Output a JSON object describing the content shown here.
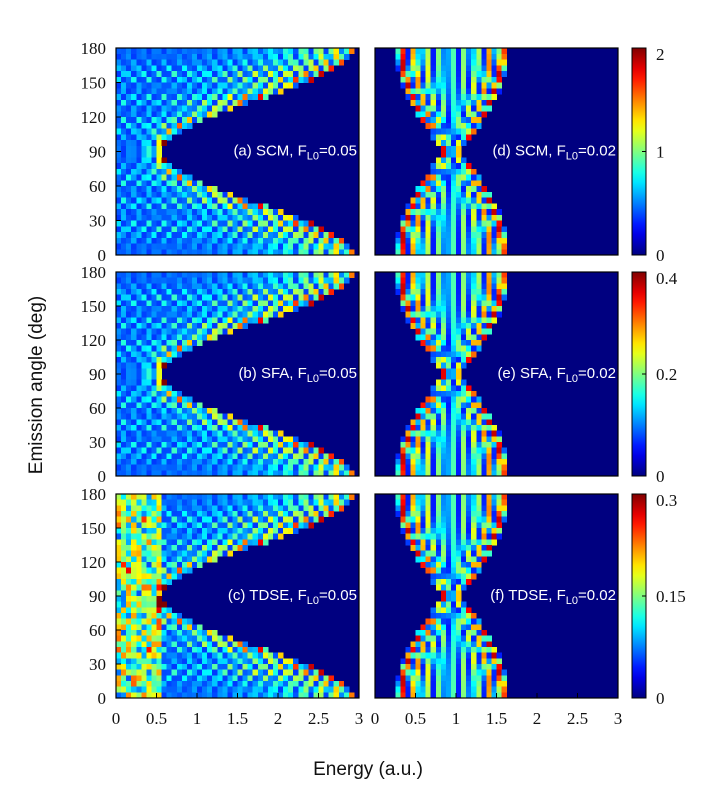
{
  "figure": {
    "ylabel": "Emission angle (deg)",
    "xlabel": "Energy (a.u.)"
  },
  "chart_data": [
    {
      "type": "heatmap",
      "panel": "a",
      "label": {
        "prefix": "(a) SCM, F",
        "sub": "L0",
        "suffix": "=0.05"
      },
      "x_ticks": [
        "0",
        "0.5",
        "1",
        "1.5",
        "2",
        "2.5",
        "3"
      ],
      "xlim": [
        0,
        3
      ],
      "y_ticks": [
        "0",
        "30",
        "60",
        "90",
        "120",
        "150",
        "180"
      ],
      "ylim": [
        0,
        180
      ],
      "colorbar_ticks": [
        "0",
        "1",
        "2"
      ],
      "zlim": [
        0,
        2
      ],
      "colormap": "jet",
      "field_F_L0": 0.05,
      "method": "SCM"
    },
    {
      "type": "heatmap",
      "panel": "d",
      "label": {
        "prefix": "(d) SCM, F",
        "sub": "L0",
        "suffix": "=0.02"
      },
      "x_ticks": [
        "0",
        "0.5",
        "1",
        "1.5",
        "2",
        "2.5",
        "3"
      ],
      "xlim": [
        0,
        3
      ],
      "y_ticks": [
        "0",
        "30",
        "60",
        "90",
        "120",
        "150",
        "180"
      ],
      "ylim": [
        0,
        180
      ],
      "colorbar_ticks": [
        "0",
        "1",
        "2"
      ],
      "zlim": [
        0,
        2
      ],
      "colormap": "jet",
      "field_F_L0": 0.02,
      "method": "SCM"
    },
    {
      "type": "heatmap",
      "panel": "b",
      "label": {
        "prefix": "(b) SFA, F",
        "sub": "L0",
        "suffix": "=0.05"
      },
      "x_ticks": [
        "0",
        "0.5",
        "1",
        "1.5",
        "2",
        "2.5",
        "3"
      ],
      "xlim": [
        0,
        3
      ],
      "y_ticks": [
        "0",
        "30",
        "60",
        "90",
        "120",
        "150",
        "180"
      ],
      "ylim": [
        0,
        180
      ],
      "colorbar_ticks": [
        "0",
        "0.2",
        "0.4"
      ],
      "zlim": [
        0,
        0.4
      ],
      "colormap": "jet",
      "field_F_L0": 0.05,
      "method": "SFA"
    },
    {
      "type": "heatmap",
      "panel": "e",
      "label": {
        "prefix": "(e) SFA, F",
        "sub": "L0",
        "suffix": "=0.02"
      },
      "x_ticks": [
        "0",
        "0.5",
        "1",
        "1.5",
        "2",
        "2.5",
        "3"
      ],
      "xlim": [
        0,
        3
      ],
      "y_ticks": [
        "0",
        "30",
        "60",
        "90",
        "120",
        "150",
        "180"
      ],
      "ylim": [
        0,
        180
      ],
      "colorbar_ticks": [
        "0",
        "0.2",
        "0.4"
      ],
      "zlim": [
        0,
        0.4
      ],
      "colormap": "jet",
      "field_F_L0": 0.02,
      "method": "SFA"
    },
    {
      "type": "heatmap",
      "panel": "c",
      "label": {
        "prefix": "(c) TDSE, F",
        "sub": "L0",
        "suffix": "=0.05"
      },
      "x_ticks": [
        "0",
        "0.5",
        "1",
        "1.5",
        "2",
        "2.5",
        "3"
      ],
      "xlim": [
        0,
        3
      ],
      "y_ticks": [
        "0",
        "30",
        "60",
        "90",
        "120",
        "150",
        "180"
      ],
      "ylim": [
        0,
        180
      ],
      "colorbar_ticks": [
        "0",
        "0.15",
        "0.3"
      ],
      "zlim": [
        0,
        0.3
      ],
      "colormap": "jet",
      "field_F_L0": 0.05,
      "method": "TDSE"
    },
    {
      "type": "heatmap",
      "panel": "f",
      "label": {
        "prefix": "(f) TDSE, F",
        "sub": "L0",
        "suffix": "=0.02"
      },
      "x_ticks": [
        "0",
        "0.5",
        "1",
        "1.5",
        "2",
        "2.5",
        "3"
      ],
      "xlim": [
        0,
        3
      ],
      "y_ticks": [
        "0",
        "30",
        "60",
        "90",
        "120",
        "150",
        "180"
      ],
      "ylim": [
        0,
        180
      ],
      "colorbar_ticks": [
        "0",
        "0.15",
        "0.3"
      ],
      "zlim": [
        0,
        0.3
      ],
      "colormap": "jet",
      "field_F_L0": 0.02,
      "method": "TDSE"
    }
  ]
}
